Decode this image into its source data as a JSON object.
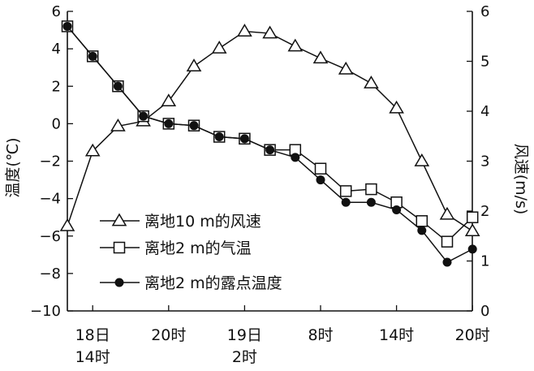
{
  "chart_data": {
    "type": "line",
    "title": "",
    "x": [
      0,
      1,
      2,
      3,
      4,
      5,
      6,
      7,
      8,
      9,
      10,
      11,
      12,
      13,
      14,
      15,
      16
    ],
    "x_ticks": [
      {
        "x": 1,
        "lines": [
          "18日",
          "14时"
        ]
      },
      {
        "x": 4,
        "lines": [
          "20时"
        ]
      },
      {
        "x": 7,
        "lines": [
          "19日",
          "2时"
        ]
      },
      {
        "x": 10,
        "lines": [
          "8时"
        ]
      },
      {
        "x": 13,
        "lines": [
          "14时"
        ]
      },
      {
        "x": 16,
        "lines": [
          "20时"
        ]
      }
    ],
    "y_left": {
      "label": "温度(℃)",
      "range": [
        -10,
        6
      ],
      "ticks": [
        6,
        4,
        2,
        0,
        -2,
        -4,
        -6,
        -8,
        -10
      ],
      "tick_labels": [
        "6",
        "4",
        "2",
        "0",
        "−2",
        "−4",
        "−6",
        "−8",
        "−10"
      ]
    },
    "y_right": {
      "label": "风速(m/s)",
      "range": [
        0,
        6
      ],
      "ticks": [
        6,
        5,
        4,
        3,
        2,
        1,
        0
      ],
      "tick_labels": [
        "6",
        "5",
        "4",
        "3",
        "2",
        "1",
        "0"
      ]
    },
    "series": [
      {
        "name": "离地10 m的风速",
        "marker": "triangle",
        "axis": "right",
        "points": [
          [
            0,
            1.7
          ],
          [
            1,
            3.2
          ],
          [
            2,
            3.7
          ],
          [
            3,
            3.8
          ],
          [
            4,
            4.2
          ],
          [
            5,
            4.9
          ],
          [
            6,
            5.26
          ],
          [
            7,
            5.6
          ],
          [
            8,
            5.56
          ],
          [
            9,
            5.3
          ],
          [
            10,
            5.06
          ],
          [
            11,
            4.84
          ],
          [
            12,
            4.56
          ],
          [
            13,
            4.06
          ],
          [
            14,
            3.0
          ],
          [
            15,
            1.93
          ],
          [
            16,
            1.6
          ]
        ]
      },
      {
        "name": "离地2 m的气温",
        "marker": "square",
        "axis": "left",
        "points": [
          [
            0,
            5.2
          ],
          [
            1,
            3.6
          ],
          [
            2,
            2.0
          ],
          [
            3,
            0.4
          ],
          [
            4,
            0.0
          ],
          [
            5,
            -0.1
          ],
          [
            6,
            -0.7
          ],
          [
            7,
            -0.8
          ],
          [
            8,
            -1.4
          ],
          [
            9,
            -1.4
          ],
          [
            10,
            -2.4
          ],
          [
            11,
            -3.6
          ],
          [
            12,
            -3.5
          ],
          [
            13,
            -4.2
          ],
          [
            14,
            -5.2
          ],
          [
            15,
            -6.3
          ],
          [
            16,
            -5.0
          ]
        ]
      },
      {
        "name": "离地2 m的露点温度",
        "marker": "dot",
        "axis": "left",
        "points": [
          [
            0,
            5.2
          ],
          [
            1,
            3.6
          ],
          [
            2,
            2.0
          ],
          [
            3,
            0.4
          ],
          [
            4,
            0.0
          ],
          [
            5,
            -0.1
          ],
          [
            6,
            -0.7
          ],
          [
            7,
            -0.8
          ],
          [
            8,
            -1.4
          ],
          [
            9,
            -1.8
          ],
          [
            10,
            -3.0
          ],
          [
            11,
            -4.2
          ],
          [
            12,
            -4.2
          ],
          [
            13,
            -4.6
          ],
          [
            14,
            -5.7
          ],
          [
            15,
            -7.4
          ],
          [
            16,
            -6.7
          ]
        ]
      }
    ],
    "legend_position": "lower-left"
  }
}
